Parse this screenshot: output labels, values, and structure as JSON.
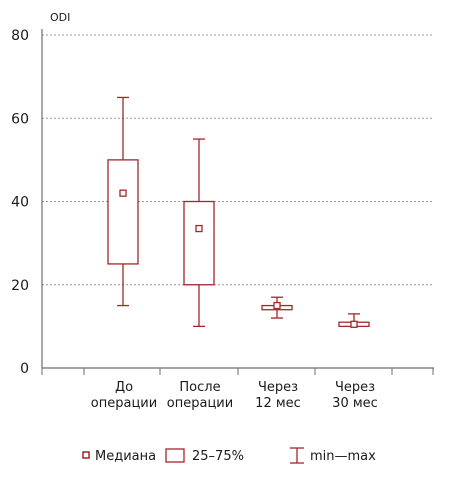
{
  "colors": {
    "accent": "#a3262a",
    "grid": "#9a9a9a",
    "axis": "#6e6e6e",
    "text": "#1a1a1a"
  },
  "chart_data": {
    "type": "box",
    "ylabel": "ODI",
    "ylim": [
      0,
      80
    ],
    "yticks": [
      "0",
      "20",
      "40",
      "60",
      "80"
    ],
    "grid": "horizontal-dashed",
    "legend_placement": "bottom",
    "categories": [
      [
        "До",
        "операции"
      ],
      [
        "После",
        "операции"
      ],
      [
        "Через",
        "12 мес"
      ],
      [
        "Через",
        "30 мес"
      ]
    ],
    "boxes": [
      {
        "min": 15,
        "q1": 25,
        "median": 42,
        "q3": 50,
        "max": 65
      },
      {
        "min": 10,
        "q1": 20,
        "median": 33.5,
        "q3": 40,
        "max": 55
      },
      {
        "min": 12,
        "q1": 14,
        "median": 15,
        "q3": 15,
        "max": 17
      },
      {
        "min": 10,
        "q1": 10,
        "median": 10.5,
        "q3": 11,
        "max": 13
      }
    ],
    "legend": {
      "median": "Медиана",
      "iqr": "25–75%",
      "range": "min—max"
    }
  }
}
